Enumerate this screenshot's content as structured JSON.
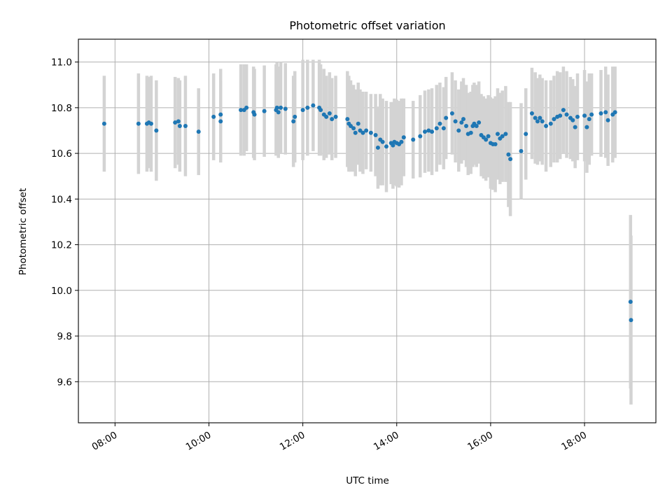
{
  "chart_data": {
    "type": "scatter",
    "title": "Photometric offset variation",
    "xlabel": "UTC time",
    "ylabel": "Photometric offset",
    "x_unit": "hours (UTC)",
    "xlim": [
      7.22,
      19.52
    ],
    "ylim": [
      9.42,
      11.1
    ],
    "x_ticks": [
      {
        "value": 8,
        "label": "08:00"
      },
      {
        "value": 10,
        "label": "10:00"
      },
      {
        "value": 12,
        "label": "12:00"
      },
      {
        "value": 14,
        "label": "14:00"
      },
      {
        "value": 16,
        "label": "16:00"
      },
      {
        "value": 18,
        "label": "18:00"
      }
    ],
    "y_ticks": [
      {
        "value": 9.6,
        "label": "9.6"
      },
      {
        "value": 9.8,
        "label": "9.8"
      },
      {
        "value": 10.0,
        "label": "10.0"
      },
      {
        "value": 10.2,
        "label": "10.2"
      },
      {
        "value": 10.4,
        "label": "10.4"
      },
      {
        "value": 10.6,
        "label": "10.6"
      },
      {
        "value": 10.8,
        "label": "10.8"
      },
      {
        "value": 11.0,
        "label": "11.0"
      }
    ],
    "grid": true,
    "marker_color": "#1f77b4",
    "errorbar_color": "#d3d3d3",
    "series": [
      {
        "points": [
          [
            7.77,
            10.73,
            0.21
          ],
          [
            8.5,
            10.73,
            0.22
          ],
          [
            8.68,
            10.73,
            0.21
          ],
          [
            8.72,
            10.735,
            0.2
          ],
          [
            8.77,
            10.73,
            0.21
          ],
          [
            8.88,
            10.7,
            0.22
          ],
          [
            9.28,
            10.735,
            0.2
          ],
          [
            9.35,
            10.74,
            0.19
          ],
          [
            9.38,
            10.72,
            0.2
          ],
          [
            9.5,
            10.72,
            0.22
          ],
          [
            9.78,
            10.695,
            0.19
          ],
          [
            10.1,
            10.76,
            0.19
          ],
          [
            10.25,
            10.77,
            0.2
          ],
          [
            10.25,
            10.74,
            0.18
          ],
          [
            10.68,
            10.79,
            0.2
          ],
          [
            10.75,
            10.79,
            0.2
          ],
          [
            10.8,
            10.8,
            0.19
          ],
          [
            10.95,
            10.78,
            0.2
          ],
          [
            10.97,
            10.77,
            0.2
          ],
          [
            11.18,
            10.785,
            0.2
          ],
          [
            11.43,
            10.79,
            0.2
          ],
          [
            11.45,
            10.8,
            0.2
          ],
          [
            11.48,
            10.78,
            0.2
          ],
          [
            11.53,
            10.8,
            0.2
          ],
          [
            11.63,
            10.795,
            0.2
          ],
          [
            11.8,
            10.74,
            0.2
          ],
          [
            11.83,
            10.76,
            0.2
          ],
          [
            12.0,
            10.79,
            0.22
          ],
          [
            12.1,
            10.8,
            0.21
          ],
          [
            12.22,
            10.81,
            0.2
          ],
          [
            12.35,
            10.8,
            0.21
          ],
          [
            12.38,
            10.79,
            0.2
          ],
          [
            12.45,
            10.77,
            0.2
          ],
          [
            12.5,
            10.76,
            0.18
          ],
          [
            12.57,
            10.775,
            0.18
          ],
          [
            12.62,
            10.75,
            0.18
          ],
          [
            12.7,
            10.76,
            0.18
          ],
          [
            12.95,
            10.75,
            0.21
          ],
          [
            12.98,
            10.73,
            0.21
          ],
          [
            13.02,
            10.72,
            0.2
          ],
          [
            13.08,
            10.71,
            0.19
          ],
          [
            13.12,
            10.69,
            0.19
          ],
          [
            13.18,
            10.73,
            0.18
          ],
          [
            13.22,
            10.7,
            0.18
          ],
          [
            13.28,
            10.69,
            0.18
          ],
          [
            13.35,
            10.7,
            0.17
          ],
          [
            13.45,
            10.69,
            0.17
          ],
          [
            13.55,
            10.68,
            0.18
          ],
          [
            13.6,
            10.625,
            0.18
          ],
          [
            13.65,
            10.66,
            0.2
          ],
          [
            13.7,
            10.65,
            0.19
          ],
          [
            13.78,
            10.63,
            0.2
          ],
          [
            13.88,
            10.645,
            0.18
          ],
          [
            13.92,
            10.635,
            0.19
          ],
          [
            13.95,
            10.65,
            0.19
          ],
          [
            14.0,
            10.645,
            0.19
          ],
          [
            14.05,
            10.64,
            0.19
          ],
          [
            14.1,
            10.65,
            0.19
          ],
          [
            14.15,
            10.67,
            0.17
          ],
          [
            14.35,
            10.66,
            0.17
          ],
          [
            14.5,
            10.675,
            0.18
          ],
          [
            14.6,
            10.695,
            0.18
          ],
          [
            14.68,
            10.7,
            0.18
          ],
          [
            14.75,
            10.695,
            0.19
          ],
          [
            14.85,
            10.71,
            0.19
          ],
          [
            14.92,
            10.73,
            0.18
          ],
          [
            15.0,
            10.71,
            0.18
          ],
          [
            15.05,
            10.755,
            0.18
          ],
          [
            15.18,
            10.775,
            0.18
          ],
          [
            15.25,
            10.74,
            0.18
          ],
          [
            15.32,
            10.7,
            0.18
          ],
          [
            15.38,
            10.735,
            0.18
          ],
          [
            15.42,
            10.75,
            0.18
          ],
          [
            15.48,
            10.72,
            0.18
          ],
          [
            15.52,
            10.685,
            0.18
          ],
          [
            15.58,
            10.69,
            0.18
          ],
          [
            15.62,
            10.72,
            0.18
          ],
          [
            15.65,
            10.73,
            0.18
          ],
          [
            15.7,
            10.72,
            0.18
          ],
          [
            15.75,
            10.735,
            0.18
          ],
          [
            15.8,
            10.68,
            0.18
          ],
          [
            15.85,
            10.67,
            0.18
          ],
          [
            15.9,
            10.66,
            0.18
          ],
          [
            15.95,
            10.675,
            0.18
          ],
          [
            16.0,
            10.645,
            0.2
          ],
          [
            16.05,
            10.64,
            0.2
          ],
          [
            16.1,
            10.64,
            0.21
          ],
          [
            16.15,
            10.685,
            0.2
          ],
          [
            16.2,
            10.665,
            0.2
          ],
          [
            16.25,
            10.675,
            0.2
          ],
          [
            16.32,
            10.685,
            0.21
          ],
          [
            16.38,
            10.595,
            0.23
          ],
          [
            16.42,
            10.575,
            0.25
          ],
          [
            16.65,
            10.61,
            0.21
          ],
          [
            16.75,
            10.685,
            0.2
          ],
          [
            16.88,
            10.775,
            0.2
          ],
          [
            16.95,
            10.755,
            0.2
          ],
          [
            17.0,
            10.74,
            0.19
          ],
          [
            17.05,
            10.755,
            0.19
          ],
          [
            17.1,
            10.74,
            0.19
          ],
          [
            17.18,
            10.72,
            0.2
          ],
          [
            17.28,
            10.73,
            0.19
          ],
          [
            17.35,
            10.75,
            0.19
          ],
          [
            17.42,
            10.76,
            0.2
          ],
          [
            17.48,
            10.765,
            0.19
          ],
          [
            17.55,
            10.79,
            0.19
          ],
          [
            17.62,
            10.77,
            0.19
          ],
          [
            17.7,
            10.755,
            0.18
          ],
          [
            17.75,
            10.745,
            0.18
          ],
          [
            17.8,
            10.715,
            0.18
          ],
          [
            17.85,
            10.76,
            0.19
          ],
          [
            18.0,
            10.765,
            0.2
          ],
          [
            18.05,
            10.715,
            0.2
          ],
          [
            18.1,
            10.75,
            0.2
          ],
          [
            18.15,
            10.77,
            0.18
          ],
          [
            18.35,
            10.775,
            0.19
          ],
          [
            18.45,
            10.78,
            0.2
          ],
          [
            18.5,
            10.745,
            0.2
          ],
          [
            18.6,
            10.77,
            0.21
          ],
          [
            18.65,
            10.78,
            0.2
          ],
          [
            18.98,
            9.95,
            0.38
          ],
          [
            18.99,
            9.87,
            0.37
          ]
        ]
      }
    ]
  }
}
